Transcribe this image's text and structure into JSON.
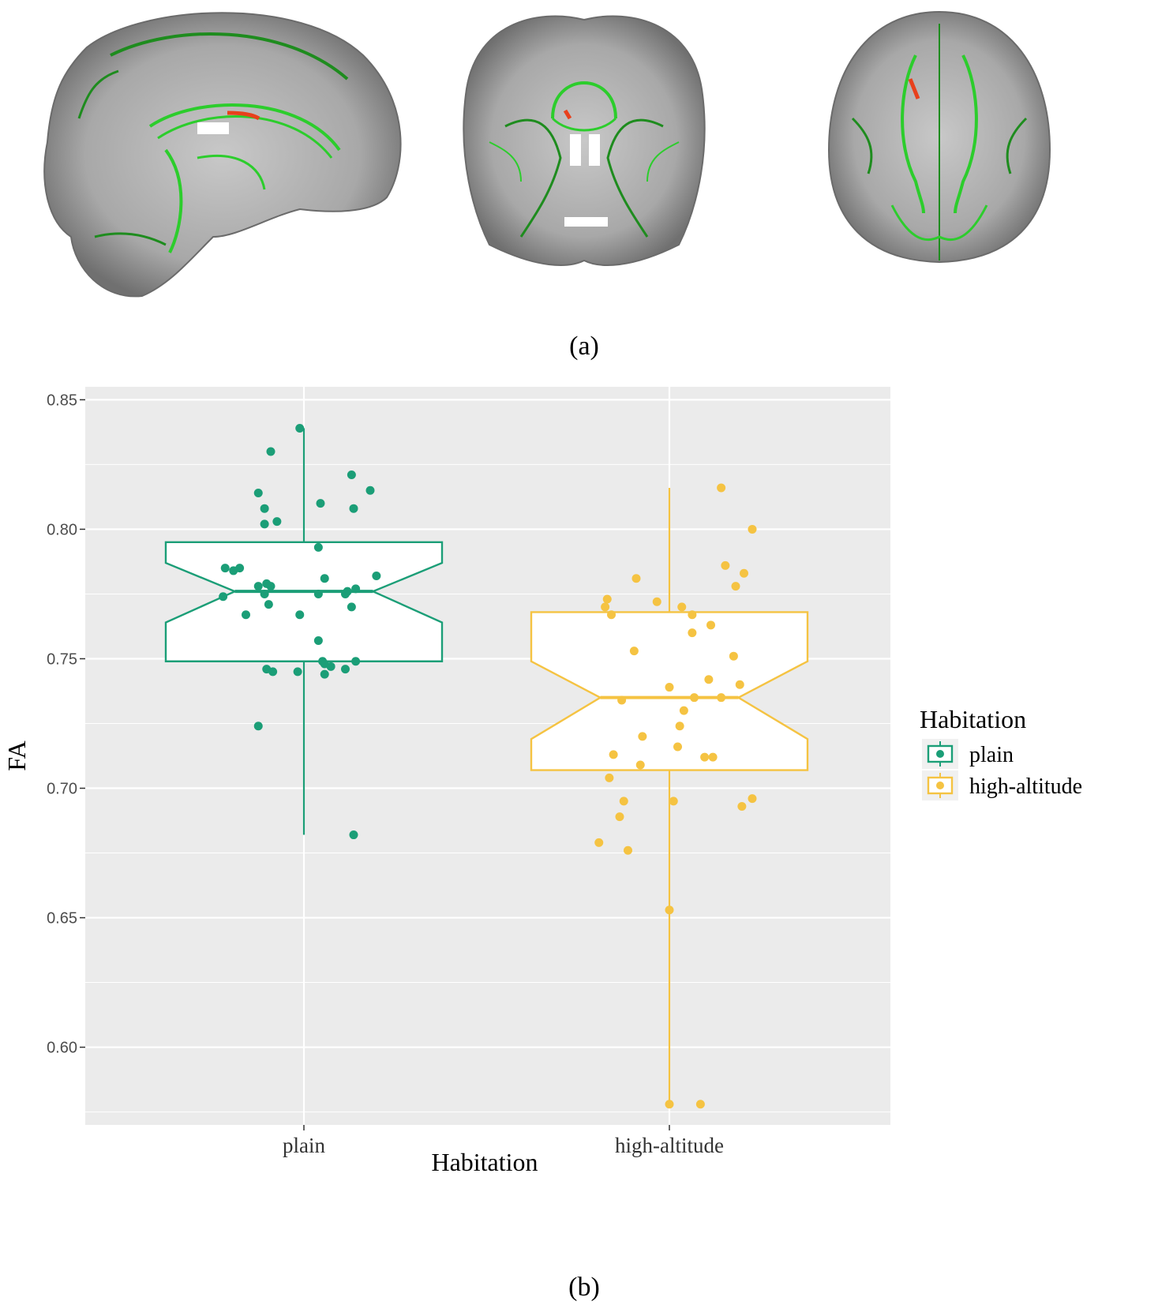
{
  "panel_labels": {
    "a": "(a)",
    "b": "(b)"
  },
  "brain_views": [
    {
      "name": "sagittal",
      "icon": "sagittal-brain-icon"
    },
    {
      "name": "coronal",
      "icon": "coronal-brain-icon"
    },
    {
      "name": "axial",
      "icon": "axial-brain-icon"
    }
  ],
  "colors": {
    "plot_background": "#ebebeb",
    "grid": "#ffffff",
    "plain": "#1b9e77",
    "high_altitude": "#f5c342",
    "brain_tissue": "#9a9a9a",
    "skeleton": "#22c322",
    "significant": "#e8401c"
  },
  "chart_data": {
    "type": "boxplot",
    "xlabel": "Habitation",
    "ylabel": "FA",
    "ylim": [
      0.57,
      0.855
    ],
    "yticks": [
      0.6,
      0.65,
      0.7,
      0.75,
      0.8,
      0.85
    ],
    "ytick_labels": [
      "0.60",
      "0.65",
      "0.70",
      "0.75",
      "0.80",
      "0.85"
    ],
    "categories": [
      "plain",
      "high-altitude"
    ],
    "notched": true,
    "grid": true,
    "legend": {
      "title": "Habitation",
      "position": "right",
      "entries": [
        "plain",
        "high-altitude"
      ]
    },
    "series": [
      {
        "name": "plain",
        "box": {
          "whisker_low": 0.682,
          "q1": 0.749,
          "median": 0.776,
          "q3": 0.795,
          "whisker_high": 0.839,
          "notch_low": 0.764,
          "notch_high": 0.787
        },
        "points": [
          [
            -0.02,
            0.839
          ],
          [
            -0.16,
            0.83
          ],
          [
            0.23,
            0.821
          ],
          [
            0.32,
            0.815
          ],
          [
            -0.22,
            0.814
          ],
          [
            -0.19,
            0.808
          ],
          [
            0.08,
            0.81
          ],
          [
            0.24,
            0.808
          ],
          [
            -0.13,
            0.803
          ],
          [
            -0.19,
            0.802
          ],
          [
            0.07,
            0.793
          ],
          [
            -0.38,
            0.785
          ],
          [
            -0.31,
            0.785
          ],
          [
            -0.34,
            0.784
          ],
          [
            0.35,
            0.782
          ],
          [
            0.1,
            0.781
          ],
          [
            -0.18,
            0.779
          ],
          [
            -0.16,
            0.778
          ],
          [
            -0.22,
            0.778
          ],
          [
            0.25,
            0.777
          ],
          [
            0.21,
            0.776
          ],
          [
            -0.39,
            0.774
          ],
          [
            -0.19,
            0.775
          ],
          [
            0.07,
            0.775
          ],
          [
            0.2,
            0.775
          ],
          [
            -0.17,
            0.771
          ],
          [
            0.23,
            0.77
          ],
          [
            -0.28,
            0.767
          ],
          [
            -0.02,
            0.767
          ],
          [
            0.07,
            0.757
          ],
          [
            0.25,
            0.749
          ],
          [
            0.09,
            0.749
          ],
          [
            0.1,
            0.748
          ],
          [
            0.13,
            0.747
          ],
          [
            -0.18,
            0.746
          ],
          [
            -0.15,
            0.745
          ],
          [
            -0.03,
            0.745
          ],
          [
            0.2,
            0.746
          ],
          [
            0.1,
            0.744
          ],
          [
            -0.22,
            0.724
          ],
          [
            0.24,
            0.682
          ]
        ]
      },
      {
        "name": "high-altitude",
        "box": {
          "whisker_low": 0.578,
          "q1": 0.707,
          "median": 0.735,
          "q3": 0.768,
          "whisker_high": 0.816,
          "notch_low": 0.719,
          "notch_high": 0.749
        },
        "points": [
          [
            0.25,
            0.816
          ],
          [
            0.4,
            0.8
          ],
          [
            0.27,
            0.786
          ],
          [
            0.36,
            0.783
          ],
          [
            -0.16,
            0.781
          ],
          [
            0.32,
            0.778
          ],
          [
            -0.3,
            0.773
          ],
          [
            -0.06,
            0.772
          ],
          [
            -0.31,
            0.77
          ],
          [
            0.06,
            0.77
          ],
          [
            -0.28,
            0.767
          ],
          [
            0.11,
            0.767
          ],
          [
            0.2,
            0.763
          ],
          [
            0.11,
            0.76
          ],
          [
            -0.17,
            0.753
          ],
          [
            0.31,
            0.751
          ],
          [
            0.19,
            0.742
          ],
          [
            0.34,
            0.74
          ],
          [
            0.0,
            0.739
          ],
          [
            -0.23,
            0.734
          ],
          [
            0.12,
            0.735
          ],
          [
            0.25,
            0.735
          ],
          [
            0.07,
            0.73
          ],
          [
            0.05,
            0.724
          ],
          [
            -0.13,
            0.72
          ],
          [
            0.04,
            0.716
          ],
          [
            -0.27,
            0.713
          ],
          [
            0.17,
            0.712
          ],
          [
            0.21,
            0.712
          ],
          [
            -0.14,
            0.709
          ],
          [
            -0.29,
            0.704
          ],
          [
            -0.22,
            0.695
          ],
          [
            0.02,
            0.695
          ],
          [
            0.4,
            0.696
          ],
          [
            0.35,
            0.693
          ],
          [
            -0.24,
            0.689
          ],
          [
            -0.34,
            0.679
          ],
          [
            -0.2,
            0.676
          ],
          [
            0.0,
            0.653
          ],
          [
            0.0,
            0.578
          ],
          [
            0.15,
            0.578
          ]
        ]
      }
    ]
  }
}
